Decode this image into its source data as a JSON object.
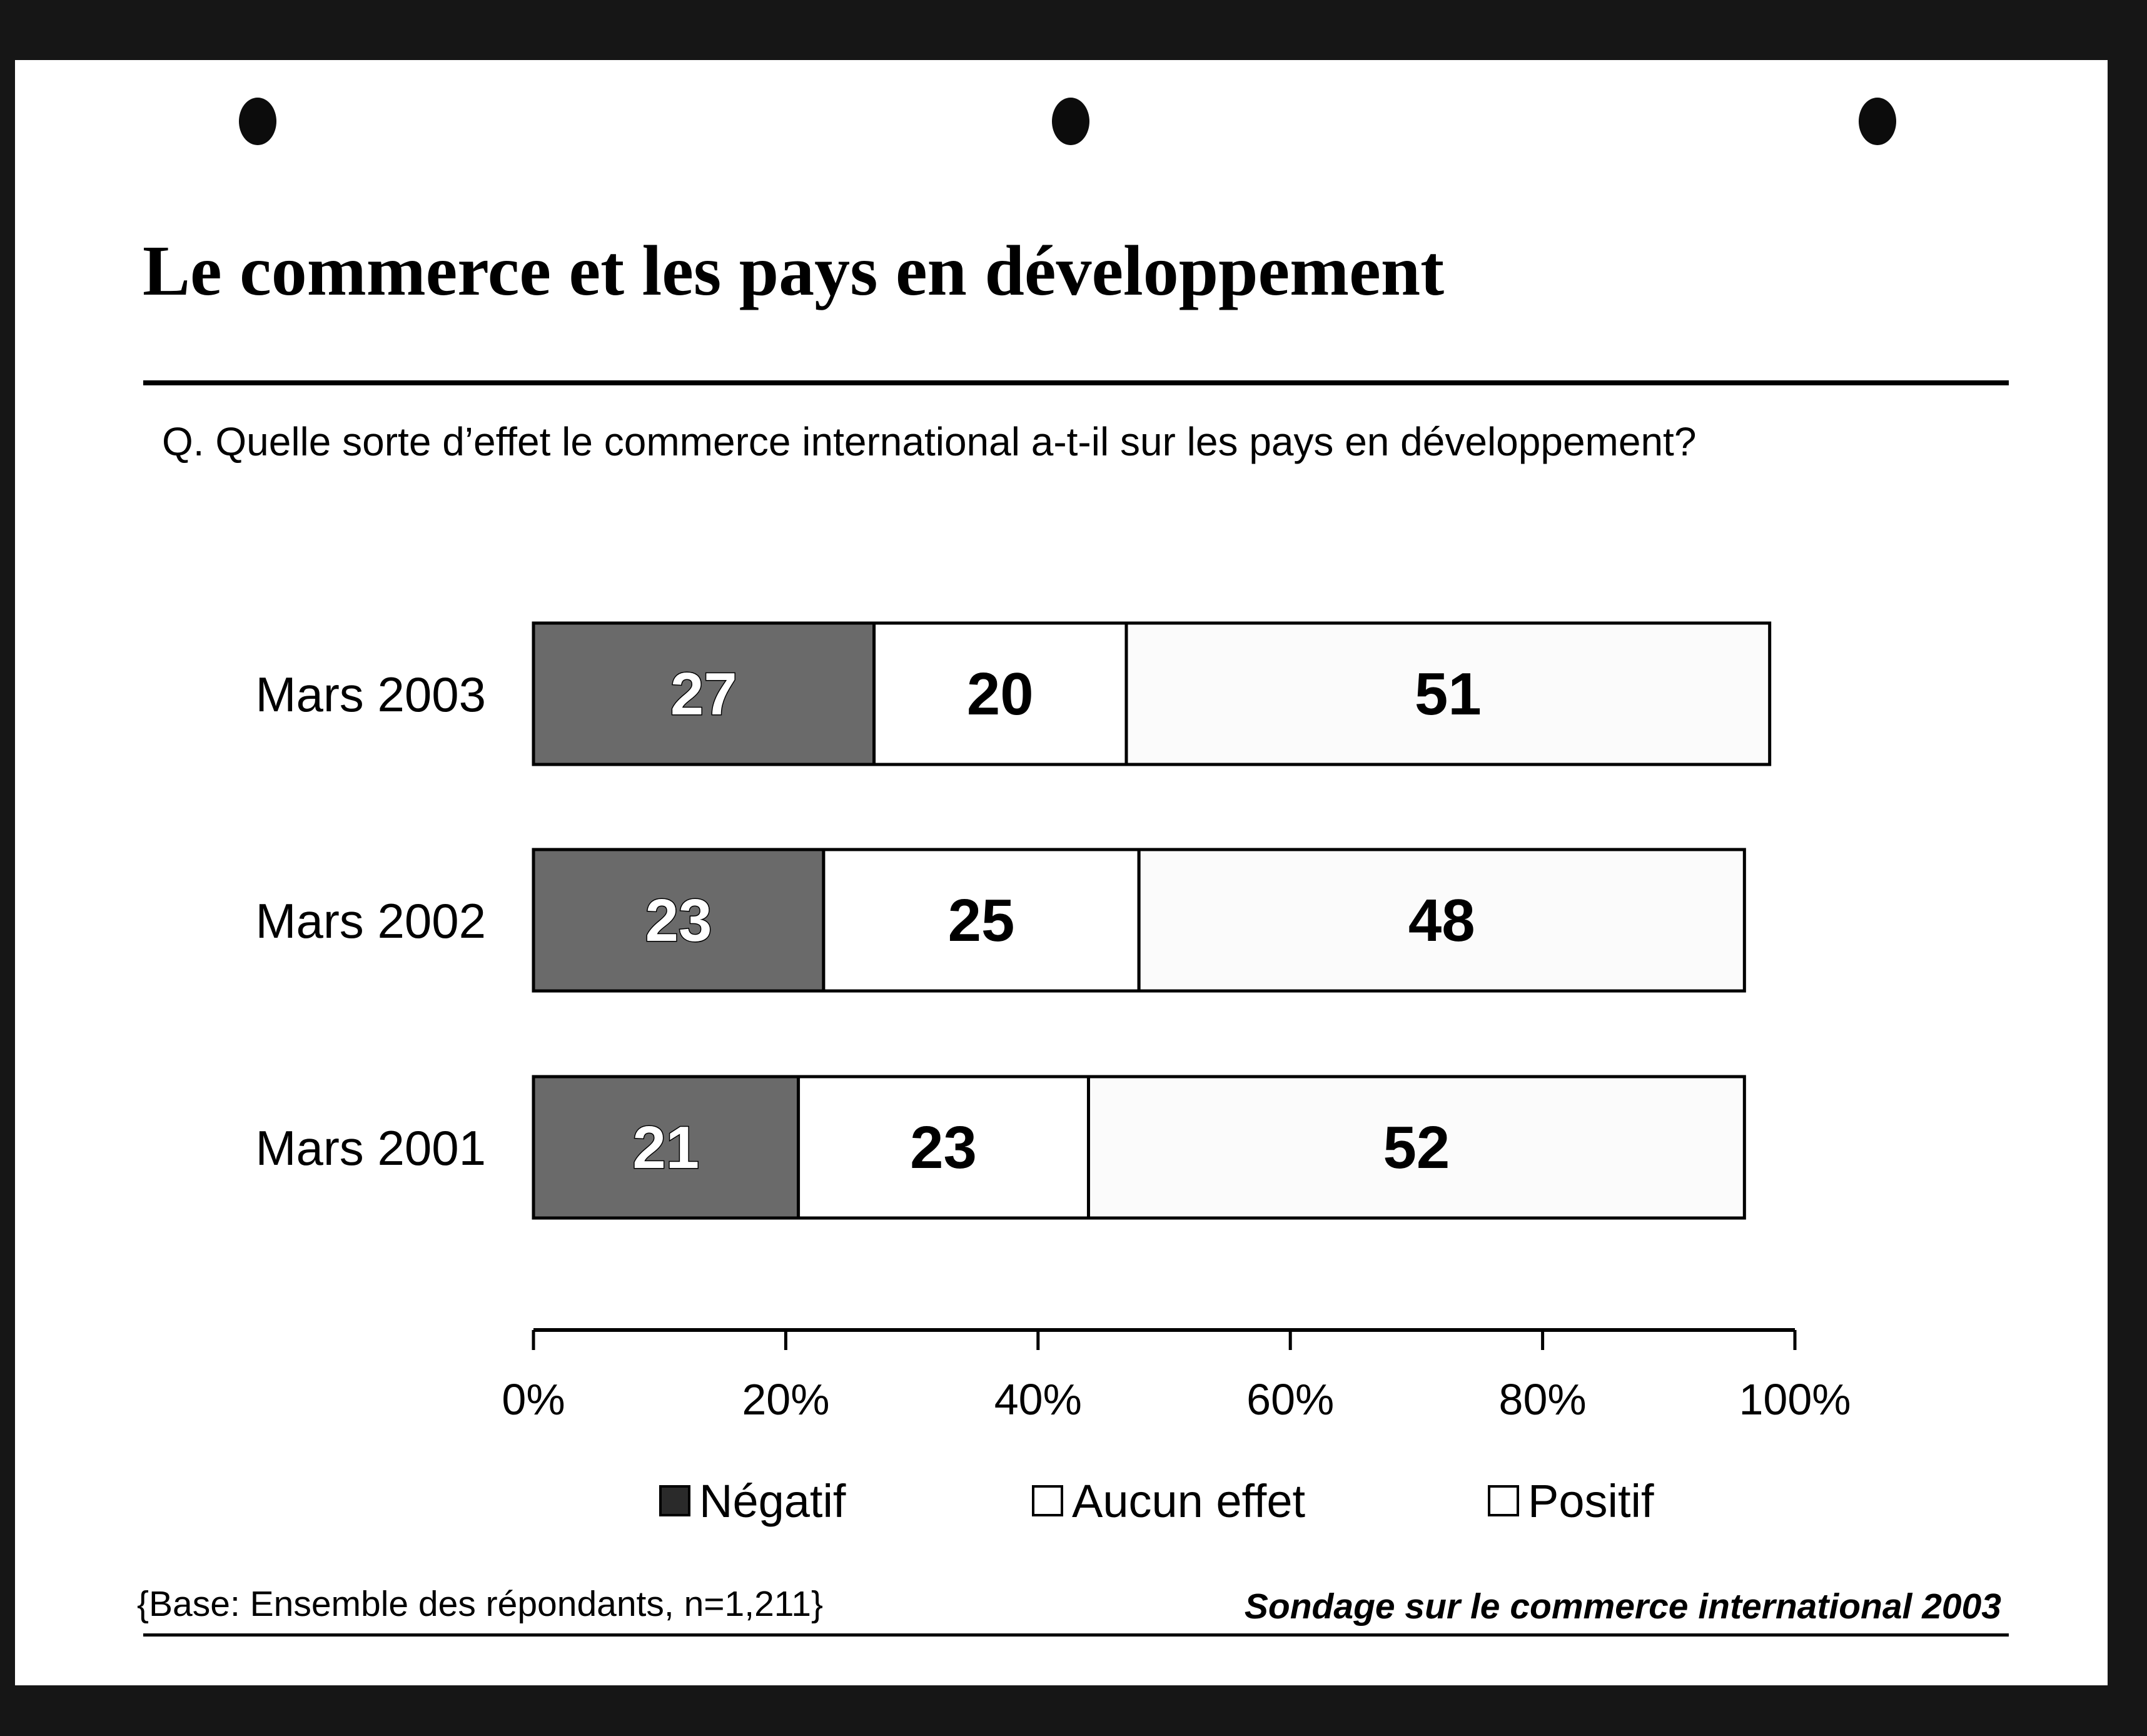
{
  "title": "Le commerce et les pays en développement",
  "question": "Q. Quelle sorte d’effet le commerce international a-t-il sur les pays en développement?",
  "footer": {
    "base": "{Base: Ensemble des répondants, n=1,211}",
    "source": "Sondage sur le commerce international 2003"
  },
  "chart_data": {
    "type": "bar",
    "orientation": "horizontal",
    "stacked": true,
    "categories": [
      "Mars 2003",
      "Mars 2002",
      "Mars 2001"
    ],
    "series": [
      {
        "name": "Négatif",
        "values": [
          27,
          23,
          21
        ],
        "color": "#6a6a6a"
      },
      {
        "name": "Aucun effet",
        "values": [
          20,
          25,
          23
        ],
        "color": "#ffffff"
      },
      {
        "name": "Positif",
        "values": [
          51,
          48,
          52
        ],
        "color": "#fbfbfb"
      }
    ],
    "xlim": [
      0,
      100
    ],
    "xticks": [
      "0%",
      "20%",
      "40%",
      "60%",
      "80%",
      "100%"
    ],
    "legend_position": "bottom",
    "grid": false
  }
}
